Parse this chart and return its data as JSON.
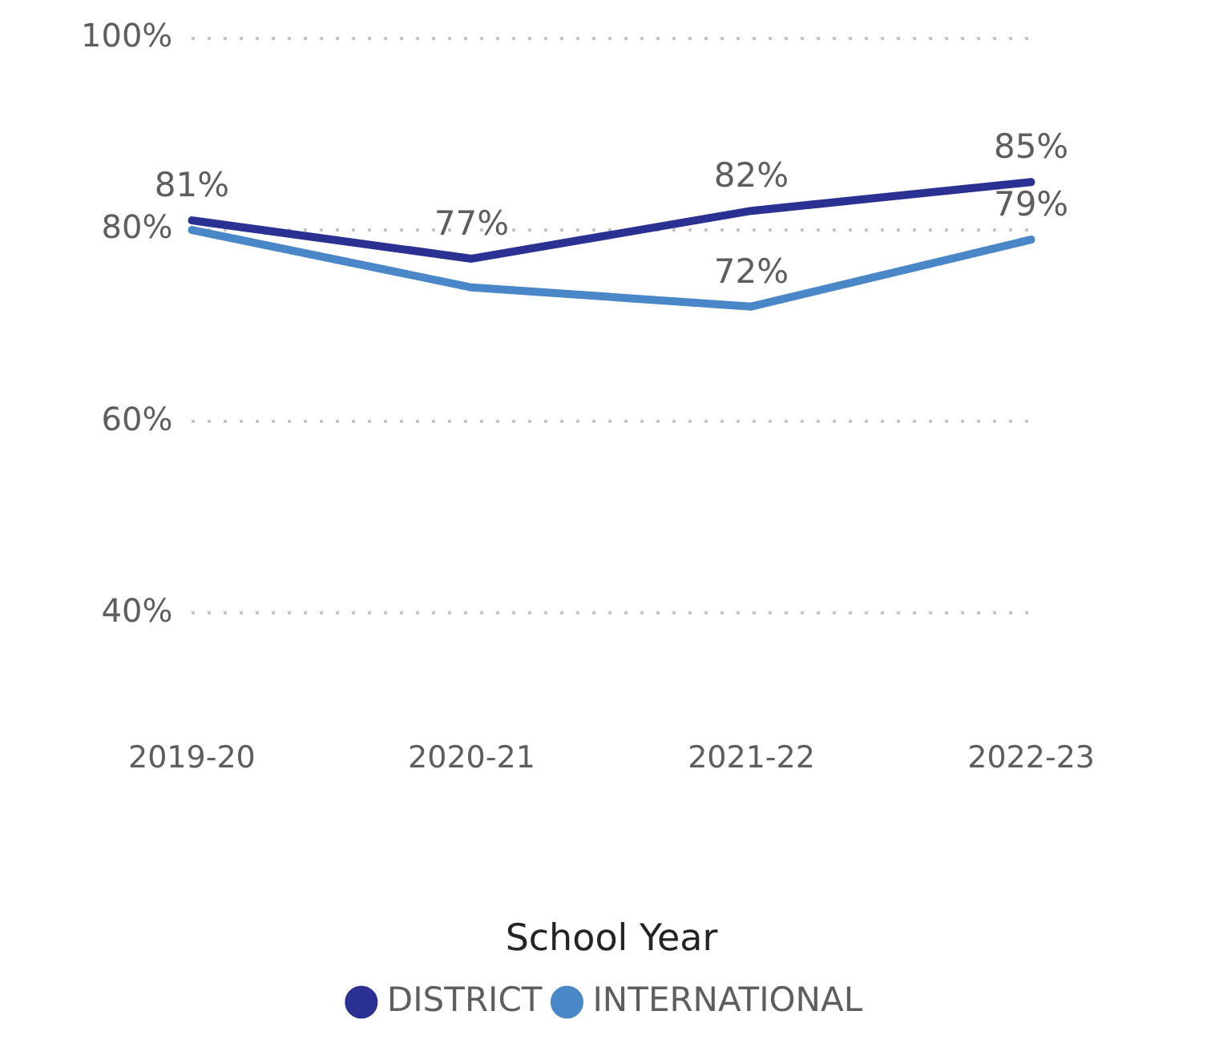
{
  "chart_data": {
    "type": "line",
    "xlabel": "School Year",
    "categories": [
      "2019-20",
      "2020-21",
      "2021-22",
      "2022-23"
    ],
    "series": [
      {
        "name": "DISTRICT",
        "color": "#2a3192",
        "values": [
          81,
          77,
          82,
          85
        ],
        "value_labels": [
          "81%",
          "77%",
          "82%",
          "85%"
        ]
      },
      {
        "name": "INTERNATIONAL",
        "color": "#4a87c9",
        "values": [
          80,
          74,
          72,
          79
        ],
        "value_labels": [
          null,
          null,
          "72%",
          "79%"
        ]
      }
    ],
    "ylim": [
      40,
      100
    ],
    "yticks": [
      {
        "value": 40,
        "label": "40%"
      },
      {
        "value": 60,
        "label": "60%"
      },
      {
        "value": 80,
        "label": "80%"
      },
      {
        "value": 100,
        "label": "100%"
      }
    ],
    "grid": "y",
    "legend": "bottom",
    "marker": "none",
    "line_style": "solid"
  }
}
